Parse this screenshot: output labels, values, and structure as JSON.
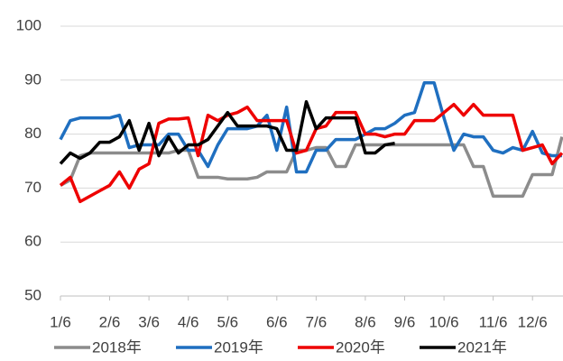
{
  "chart_data": {
    "type": "line",
    "categories": [
      "1/6",
      null,
      null,
      null,
      null,
      "2/6",
      null,
      null,
      null,
      "3/6",
      null,
      null,
      null,
      "4/6",
      null,
      null,
      null,
      "5/6",
      null,
      null,
      null,
      null,
      "6/6",
      null,
      null,
      null,
      "7/6",
      null,
      null,
      null,
      null,
      "8/6",
      null,
      null,
      null,
      "9/6",
      null,
      null,
      null,
      "10/6",
      null,
      null,
      null,
      null,
      "11/6",
      null,
      null,
      null,
      "12/6",
      null,
      null,
      null
    ],
    "series": [
      {
        "name": "2018年",
        "color": "#8c8c8c",
        "values": [
          70.5,
          71.5,
          76,
          76.5,
          76.5,
          76.5,
          76.5,
          76.5,
          76.5,
          76.5,
          76.5,
          76.5,
          77,
          77,
          72,
          72,
          72,
          71.7,
          71.7,
          71.7,
          72,
          73,
          73,
          73,
          77,
          77,
          77.5,
          77.5,
          74,
          74,
          78,
          78,
          78,
          78,
          78,
          78,
          78,
          78,
          78,
          78,
          78,
          78,
          74,
          74,
          68.5,
          68.5,
          68.5,
          68.5,
          72.5,
          72.5,
          72.5,
          79.5
        ]
      },
      {
        "name": "2019年",
        "color": "#1f6fc0",
        "values": [
          79,
          82.5,
          83,
          83,
          83,
          83,
          83.5,
          77.5,
          78,
          78,
          78,
          80,
          80,
          77,
          77,
          74,
          78,
          81,
          81,
          81,
          81.5,
          83.5,
          77,
          85,
          73,
          73,
          77,
          77,
          79,
          79,
          79,
          80,
          81,
          81,
          82,
          83.5,
          84,
          89.5,
          89.5,
          83,
          77,
          80,
          79.5,
          79.5,
          77,
          76.5,
          77.5,
          77,
          80.5,
          76.5,
          76,
          76
        ]
      },
      {
        "name": "2020年",
        "color": "#ee0000",
        "values": [
          70.5,
          72,
          67.5,
          68.5,
          69.5,
          70.5,
          73,
          70,
          73.5,
          74.5,
          82,
          82.8,
          82.8,
          83,
          76,
          83.5,
          82.5,
          83.5,
          84,
          85,
          82.5,
          82.5,
          82.5,
          82.5,
          76.5,
          77,
          81,
          81.5,
          84,
          84,
          84,
          80,
          80,
          79.5,
          80,
          80,
          82.5,
          82.5,
          82.5,
          84,
          85.5,
          83.5,
          85.5,
          83.5,
          83.5,
          83.5,
          83.5,
          77,
          77.5,
          78,
          74.5,
          76.5
        ]
      },
      {
        "name": "2021年",
        "color": "#000000",
        "values": [
          74.5,
          76.5,
          75.5,
          76.5,
          78.5,
          78.5,
          79.5,
          82.5,
          77,
          82,
          76,
          79.5,
          76.5,
          78,
          78,
          79,
          81.5,
          84,
          81.5,
          81.5,
          81.5,
          81.5,
          81,
          77,
          77,
          86,
          81,
          83,
          83,
          83,
          83,
          76.5,
          76.5,
          78,
          78.3,
          null,
          null,
          null,
          null,
          null,
          null,
          null,
          null,
          null,
          null,
          null,
          null,
          null,
          null,
          null,
          null,
          null
        ]
      }
    ],
    "ylim": [
      50,
      100
    ],
    "yticks": [
      50,
      60,
      70,
      80,
      90,
      100
    ],
    "grid": true,
    "legend": "bottom"
  }
}
